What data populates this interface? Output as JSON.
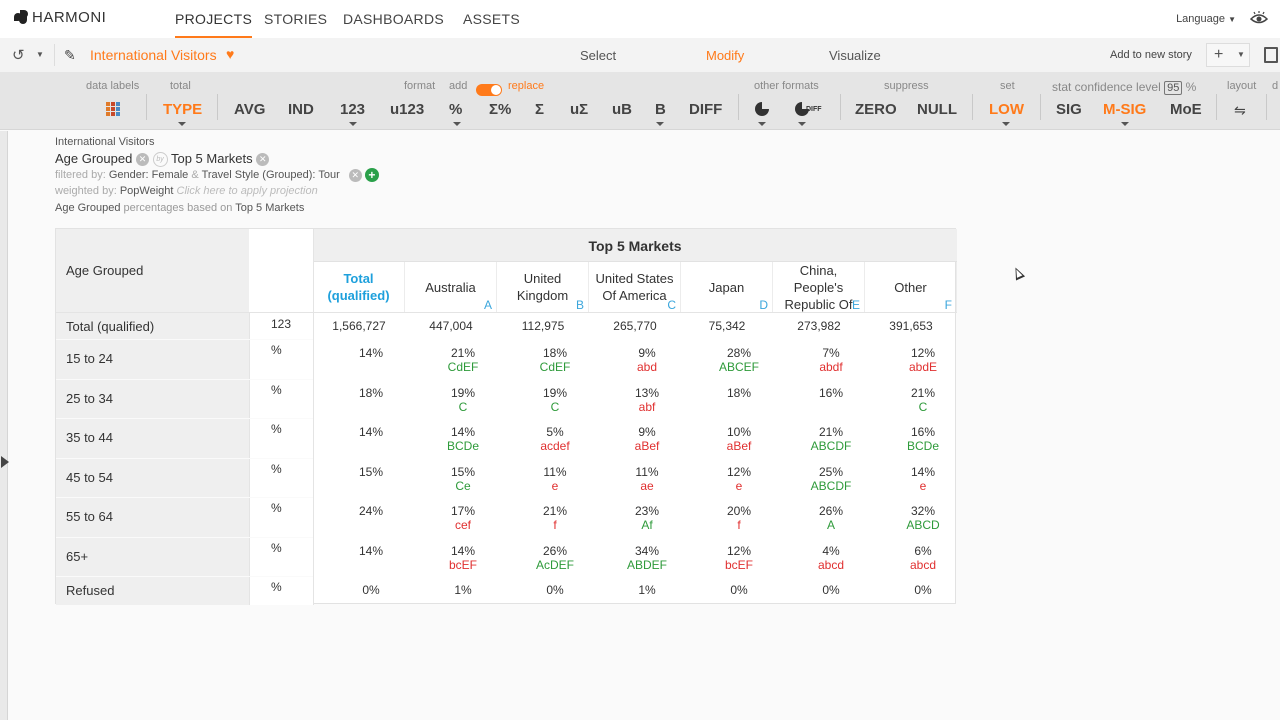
{
  "app": {
    "logo": "HARMONI"
  },
  "nav": {
    "tabs": [
      "PROJECTS",
      "STORIES",
      "DASHBOARDS",
      "ASSETS"
    ],
    "language": "Language"
  },
  "secbar": {
    "title": "International Visitors",
    "modes": [
      "Select",
      "Modify",
      "Visualize"
    ],
    "add_story": "Add to new story"
  },
  "toolbar": {
    "groups": {
      "data_labels": "data labels",
      "total": "total",
      "format": "format",
      "add": "add",
      "replace": "replace",
      "other_formats": "other formats",
      "suppress": "suppress",
      "set": "set",
      "stat_confidence": "stat confidence level",
      "confidence_value": "95",
      "percent": "%",
      "layout": "layout",
      "cut": "d"
    },
    "buttons": {
      "type": "TYPE",
      "avg": "AVG",
      "ind": "IND",
      "n123": "123",
      "u123": "u123",
      "pct": "%",
      "sigma_pct": "Σ%",
      "sigma": "Σ",
      "usigma": "uΣ",
      "ub": "uB",
      "b": "B",
      "diff": "DIFF",
      "diff_small": "DIFF",
      "zero": "ZERO",
      "null": "NULL",
      "low": "LOW",
      "sig": "SIG",
      "msig": "M-SIG",
      "moe": "MoE"
    }
  },
  "description": {
    "dataset": "International Visitors",
    "row_var": "Age Grouped",
    "by": "by",
    "col_var": "Top 5 Markets",
    "filtered_by_label": "filtered by:",
    "filter1": "Gender: Female",
    "amp": "&",
    "filter2": "Travel Style (Grouped): Tour",
    "weighted_by_label": "weighted by:",
    "weight": "PopWeight",
    "projection_hint": "Click here to apply projection",
    "pct_row": "Age Grouped",
    "pct_mid": "percentages based on",
    "pct_col": "Top 5 Markets"
  },
  "table": {
    "corner": "Age Grouped",
    "banner": "Top 5 Markets",
    "columns": [
      {
        "label": "Total (qualified)",
        "letter": ""
      },
      {
        "label": "Australia",
        "letter": "A"
      },
      {
        "label": "United Kingdom",
        "letter": "B"
      },
      {
        "label": "United States Of America",
        "letter": "C"
      },
      {
        "label": "Japan",
        "letter": "D"
      },
      {
        "label": "China, People's Republic Of",
        "letter": "E"
      },
      {
        "label": "Other",
        "letter": "F"
      }
    ],
    "rows": [
      {
        "label": "Total (qualified)",
        "unit": "123",
        "cells": [
          [
            "1,566,727",
            ""
          ],
          [
            "447,004",
            ""
          ],
          [
            "112,975",
            ""
          ],
          [
            "265,770",
            ""
          ],
          [
            "75,342",
            ""
          ],
          [
            "273,982",
            ""
          ],
          [
            "391,653",
            ""
          ]
        ]
      },
      {
        "label": "15 to 24",
        "unit": "%",
        "cells": [
          [
            "14%",
            ""
          ],
          [
            "21%",
            "CdEF"
          ],
          [
            "18%",
            "CdEF"
          ],
          [
            "9%",
            "abd"
          ],
          [
            "28%",
            "ABCEF"
          ],
          [
            "7%",
            "abdf"
          ],
          [
            "12%",
            "abdE"
          ]
        ]
      },
      {
        "label": "25 to 34",
        "unit": "%",
        "cells": [
          [
            "18%",
            ""
          ],
          [
            "19%",
            "C"
          ],
          [
            "19%",
            "C"
          ],
          [
            "13%",
            "abf"
          ],
          [
            "18%",
            ""
          ],
          [
            "16%",
            ""
          ],
          [
            "21%",
            "C"
          ]
        ]
      },
      {
        "label": "35 to 44",
        "unit": "%",
        "cells": [
          [
            "14%",
            ""
          ],
          [
            "14%",
            "BCDe"
          ],
          [
            "5%",
            "acdef"
          ],
          [
            "9%",
            "aBef"
          ],
          [
            "10%",
            "aBef"
          ],
          [
            "21%",
            "ABCDF"
          ],
          [
            "16%",
            "BCDe"
          ]
        ]
      },
      {
        "label": "45 to 54",
        "unit": "%",
        "cells": [
          [
            "15%",
            ""
          ],
          [
            "15%",
            "Ce"
          ],
          [
            "11%",
            "e"
          ],
          [
            "11%",
            "ae"
          ],
          [
            "12%",
            "e"
          ],
          [
            "25%",
            "ABCDF"
          ],
          [
            "14%",
            "e"
          ]
        ]
      },
      {
        "label": "55 to 64",
        "unit": "%",
        "cells": [
          [
            "24%",
            ""
          ],
          [
            "17%",
            "cef"
          ],
          [
            "21%",
            "f"
          ],
          [
            "23%",
            "Af"
          ],
          [
            "20%",
            "f"
          ],
          [
            "26%",
            "A"
          ],
          [
            "32%",
            "ABCD"
          ]
        ]
      },
      {
        "label": "65+",
        "unit": "%",
        "cells": [
          [
            "14%",
            ""
          ],
          [
            "14%",
            "bcEF"
          ],
          [
            "26%",
            "AcDEF"
          ],
          [
            "34%",
            "ABDEF"
          ],
          [
            "12%",
            "bcEF"
          ],
          [
            "4%",
            "abcd"
          ],
          [
            "6%",
            "abcd"
          ]
        ]
      },
      {
        "label": "Refused",
        "unit": "%",
        "cells": [
          [
            "0%",
            ""
          ],
          [
            "1%",
            ""
          ],
          [
            "0%",
            ""
          ],
          [
            "1%",
            ""
          ],
          [
            "0%",
            ""
          ],
          [
            "0%",
            ""
          ],
          [
            "0%",
            ""
          ]
        ]
      }
    ]
  },
  "colors": {
    "accent": "#ff7a1a",
    "sig_up": "#2e9a3a",
    "sig_down": "#e03030",
    "total_col": "#1ea0dc"
  }
}
